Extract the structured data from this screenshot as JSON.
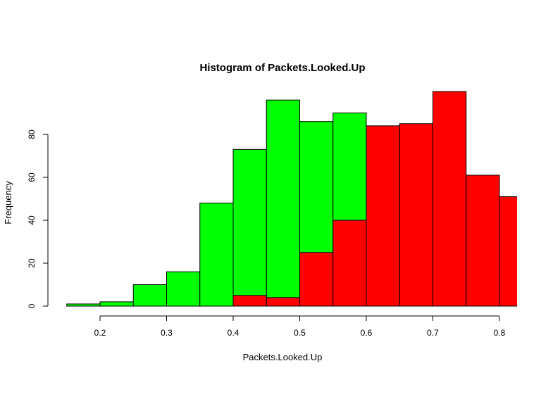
{
  "chart_data": {
    "type": "bar",
    "title": "Histogram of Packets.Looked.Up",
    "xlabel": "Packets.Looked.Up",
    "ylabel": "Frequency",
    "xlim": [
      0.15,
      0.825
    ],
    "ylim": [
      0,
      100
    ],
    "x_ticks": [
      "0.2",
      "0.3",
      "0.4",
      "0.5",
      "0.6",
      "0.7",
      "0.8"
    ],
    "y_ticks": [
      "0",
      "20",
      "40",
      "60",
      "80"
    ],
    "grid": false,
    "bin_width": 0.05,
    "series": [
      {
        "color": "#00ff00",
        "bins": [
          {
            "x0": 0.15,
            "x1": 0.2,
            "value": 1
          },
          {
            "x0": 0.2,
            "x1": 0.25,
            "value": 2
          },
          {
            "x0": 0.25,
            "x1": 0.3,
            "value": 10
          },
          {
            "x0": 0.3,
            "x1": 0.35,
            "value": 16
          },
          {
            "x0": 0.35,
            "x1": 0.4,
            "value": 48
          },
          {
            "x0": 0.4,
            "x1": 0.45,
            "value": 73
          },
          {
            "x0": 0.45,
            "x1": 0.5,
            "value": 96
          },
          {
            "x0": 0.5,
            "x1": 0.55,
            "value": 86
          },
          {
            "x0": 0.55,
            "x1": 0.6,
            "value": 90
          }
        ]
      },
      {
        "color": "#ff0000",
        "bins": [
          {
            "x0": 0.4,
            "x1": 0.45,
            "value": 5
          },
          {
            "x0": 0.45,
            "x1": 0.5,
            "value": 4
          },
          {
            "x0": 0.5,
            "x1": 0.55,
            "value": 25
          },
          {
            "x0": 0.55,
            "x1": 0.6,
            "value": 40
          },
          {
            "x0": 0.6,
            "x1": 0.65,
            "value": 84
          },
          {
            "x0": 0.65,
            "x1": 0.7,
            "value": 85
          },
          {
            "x0": 0.7,
            "x1": 0.75,
            "value": 100
          },
          {
            "x0": 0.75,
            "x1": 0.8,
            "value": 61
          },
          {
            "x0": 0.8,
            "x1": 0.85,
            "value": 51
          }
        ]
      }
    ]
  }
}
